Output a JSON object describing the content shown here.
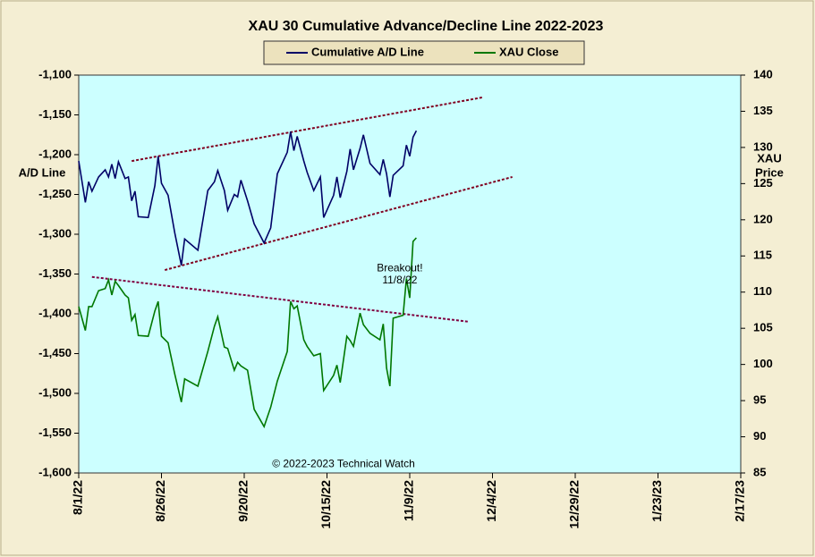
{
  "chart_data": {
    "type": "line",
    "title": "XAU 30 Cumulative Advance/Decline Line 2022-2023",
    "ylabel": "A/D Line",
    "y2label": [
      "XAU",
      "Price"
    ],
    "x": [
      "8/1/22",
      "8/3/22",
      "8/4/22",
      "8/5/22",
      "8/7/22",
      "8/9/22",
      "8/10/22",
      "8/11/22",
      "8/12/22",
      "8/13/22",
      "8/15/22",
      "8/16/22",
      "8/17/22",
      "8/18/22",
      "8/19/22",
      "8/22/22",
      "8/24/22",
      "8/25/22",
      "8/26/22",
      "8/28/22",
      "8/30/22",
      "9/1/22",
      "9/2/22",
      "9/6/22",
      "9/9/22",
      "9/11/22",
      "9/12/22",
      "9/14/22",
      "9/15/22",
      "9/17/22",
      "9/18/22",
      "9/19/22",
      "9/21/22",
      "9/23/22",
      "9/26/22",
      "9/28/22",
      "9/30/22",
      "10/3/22",
      "10/4/22",
      "10/5/22",
      "10/6/22",
      "10/8/22",
      "10/9/22",
      "10/11/22",
      "10/13/22",
      "10/14/22",
      "10/17/22",
      "10/18/22",
      "10/19/22",
      "10/21/22",
      "10/22/22",
      "10/23/22",
      "10/25/22",
      "10/26/22",
      "10/28/22",
      "10/31/22",
      "11/1/22",
      "11/2/22",
      "11/3/22",
      "11/4/22",
      "11/7/22",
      "11/8/22",
      "11/9/22",
      "11/10/22",
      "11/11/22"
    ],
    "series": [
      {
        "name": "Cumulative A/D Line",
        "color": "#000066",
        "axis": "y",
        "values": [
          -1208,
          -1260,
          -1234,
          -1246,
          -1228,
          -1219,
          -1228,
          -1212,
          -1230,
          -1209,
          -1230,
          -1228,
          -1258,
          -1246,
          -1278,
          -1279,
          -1239,
          -1202,
          -1236,
          -1251,
          -1298,
          -1339,
          -1306,
          -1320,
          -1245,
          -1234,
          -1220,
          -1245,
          -1270,
          -1250,
          -1253,
          -1232,
          -1258,
          -1287,
          -1311,
          -1292,
          -1224,
          -1197,
          -1171,
          -1195,
          -1177,
          -1208,
          -1222,
          -1245,
          -1228,
          -1279,
          -1251,
          -1228,
          -1254,
          -1221,
          -1193,
          -1219,
          -1192,
          -1175,
          -1211,
          -1225,
          -1206,
          -1224,
          -1253,
          -1226,
          -1214,
          -1188,
          -1202,
          -1178,
          -1170
        ]
      },
      {
        "name": "XAU Close",
        "color": "#007700",
        "axis": "y2",
        "values": [
          108.0,
          104.7,
          108.0,
          108.0,
          110.2,
          110.5,
          111.7,
          109.6,
          111.5,
          110.9,
          109.6,
          109.2,
          106.1,
          106.9,
          104.0,
          103.9,
          107.4,
          108.7,
          103.9,
          103.0,
          98.7,
          94.8,
          98.0,
          97.0,
          101.8,
          105.3,
          106.6,
          102.4,
          102.2,
          99.2,
          100.3,
          99.8,
          99.2,
          93.8,
          91.4,
          94.1,
          97.7,
          101.8,
          108.7,
          107.7,
          108.1,
          103.4,
          102.5,
          101.2,
          101.5,
          96.4,
          98.5,
          99.9,
          97.5,
          103.9,
          103.3,
          102.5,
          107.1,
          105.5,
          104.3,
          103.4,
          105.6,
          99.5,
          97.0,
          106.4,
          106.8,
          111.9,
          109.2,
          117.0,
          117.5
        ]
      }
    ],
    "trendlines": [
      {
        "axis": "y",
        "color": "#800020",
        "x": [
          "8/17/22",
          "12/1/22"
        ],
        "values": [
          -1208,
          -1128
        ]
      },
      {
        "axis": "y",
        "color": "#800020",
        "x": [
          "8/27/22",
          "12/10/22"
        ],
        "values": [
          -1345,
          -1228
        ]
      },
      {
        "axis": "y2",
        "color": "#800040",
        "x": [
          "8/5/22",
          "11/27/22"
        ],
        "values": [
          112.1,
          105.9
        ]
      }
    ],
    "annotations": [
      {
        "text": "Breakout!",
        "color": "#dd22bb",
        "x": "11/6/22",
        "y": -1343
      },
      {
        "text": "11/8/22",
        "color": "#888888",
        "x": "11/6/22",
        "y": -1358
      },
      {
        "text": "© 2022-2023  Technical Watch",
        "color": "#000000",
        "x": "10/20/22",
        "y": -1589
      }
    ],
    "xlim": [
      "8/1/22",
      "2/17/23"
    ],
    "xticks": [
      "8/1/22",
      "8/26/22",
      "9/20/22",
      "10/15/22",
      "11/9/22",
      "12/4/22",
      "12/29/22",
      "1/23/23",
      "2/17/23"
    ],
    "ylim": [
      -1600,
      -1100
    ],
    "yticks": [
      {
        "value": -1600,
        "label": "-1,600"
      },
      {
        "value": -1550,
        "label": "-1,550"
      },
      {
        "value": -1500,
        "label": "-1,500"
      },
      {
        "value": -1450,
        "label": "-1,450"
      },
      {
        "value": -1400,
        "label": "-1,400"
      },
      {
        "value": -1350,
        "label": "-1,350"
      },
      {
        "value": -1300,
        "label": "-1,300"
      },
      {
        "value": -1250,
        "label": "-1,250"
      },
      {
        "value": -1200,
        "label": "-1,200"
      },
      {
        "value": -1150,
        "label": "-1,150"
      },
      {
        "value": -1100,
        "label": "-1,100"
      }
    ],
    "y2lim": [
      85,
      140
    ],
    "y2ticks": [
      85,
      90,
      95,
      100,
      105,
      110,
      115,
      120,
      125,
      130,
      135,
      140
    ]
  }
}
